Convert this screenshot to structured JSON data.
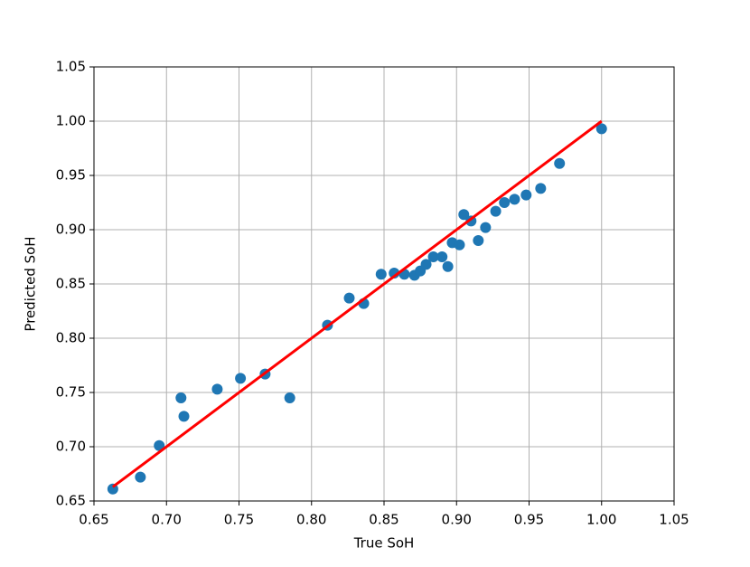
{
  "chart_data": {
    "type": "scatter",
    "xlabel": "True SoH",
    "ylabel": "Predicted SoH",
    "xlim": [
      0.65,
      1.05
    ],
    "ylim": [
      0.65,
      1.05
    ],
    "grid": true,
    "xticks": [
      {
        "value": 0.65,
        "label": "0.65"
      },
      {
        "value": 0.7,
        "label": "0.70"
      },
      {
        "value": 0.75,
        "label": "0.75"
      },
      {
        "value": 0.8,
        "label": "0.80"
      },
      {
        "value": 0.85,
        "label": "0.85"
      },
      {
        "value": 0.9,
        "label": "0.90"
      },
      {
        "value": 0.95,
        "label": "0.95"
      },
      {
        "value": 1.0,
        "label": "1.00"
      },
      {
        "value": 1.05,
        "label": "1.05"
      }
    ],
    "yticks": [
      {
        "value": 0.65,
        "label": "0.65"
      },
      {
        "value": 0.7,
        "label": "0.70"
      },
      {
        "value": 0.75,
        "label": "0.75"
      },
      {
        "value": 0.8,
        "label": "0.80"
      },
      {
        "value": 0.85,
        "label": "0.85"
      },
      {
        "value": 0.9,
        "label": "0.90"
      },
      {
        "value": 0.95,
        "label": "0.95"
      },
      {
        "value": 1.0,
        "label": "1.00"
      },
      {
        "value": 1.05,
        "label": "1.05"
      }
    ],
    "series": [
      {
        "type": "scatter",
        "color": "#1f77b4",
        "x": [
          0.663,
          0.682,
          0.695,
          0.71,
          0.712,
          0.735,
          0.751,
          0.768,
          0.785,
          0.811,
          0.826,
          0.836,
          0.848,
          0.857,
          0.864,
          0.871,
          0.875,
          0.879,
          0.884,
          0.89,
          0.894,
          0.897,
          0.902,
          0.905,
          0.91,
          0.915,
          0.92,
          0.927,
          0.933,
          0.94,
          0.948,
          0.958,
          0.971,
          1.0
        ],
        "values": [
          0.661,
          0.672,
          0.701,
          0.745,
          0.728,
          0.753,
          0.763,
          0.767,
          0.745,
          0.812,
          0.837,
          0.832,
          0.859,
          0.86,
          0.859,
          0.858,
          0.862,
          0.868,
          0.875,
          0.875,
          0.866,
          0.888,
          0.886,
          0.914,
          0.908,
          0.89,
          0.902,
          0.917,
          0.925,
          0.928,
          0.932,
          0.938,
          0.961,
          0.993
        ]
      },
      {
        "type": "line",
        "color": "#ff0000",
        "x": [
          0.663,
          1.0
        ],
        "values": [
          0.663,
          1.0
        ]
      }
    ]
  }
}
